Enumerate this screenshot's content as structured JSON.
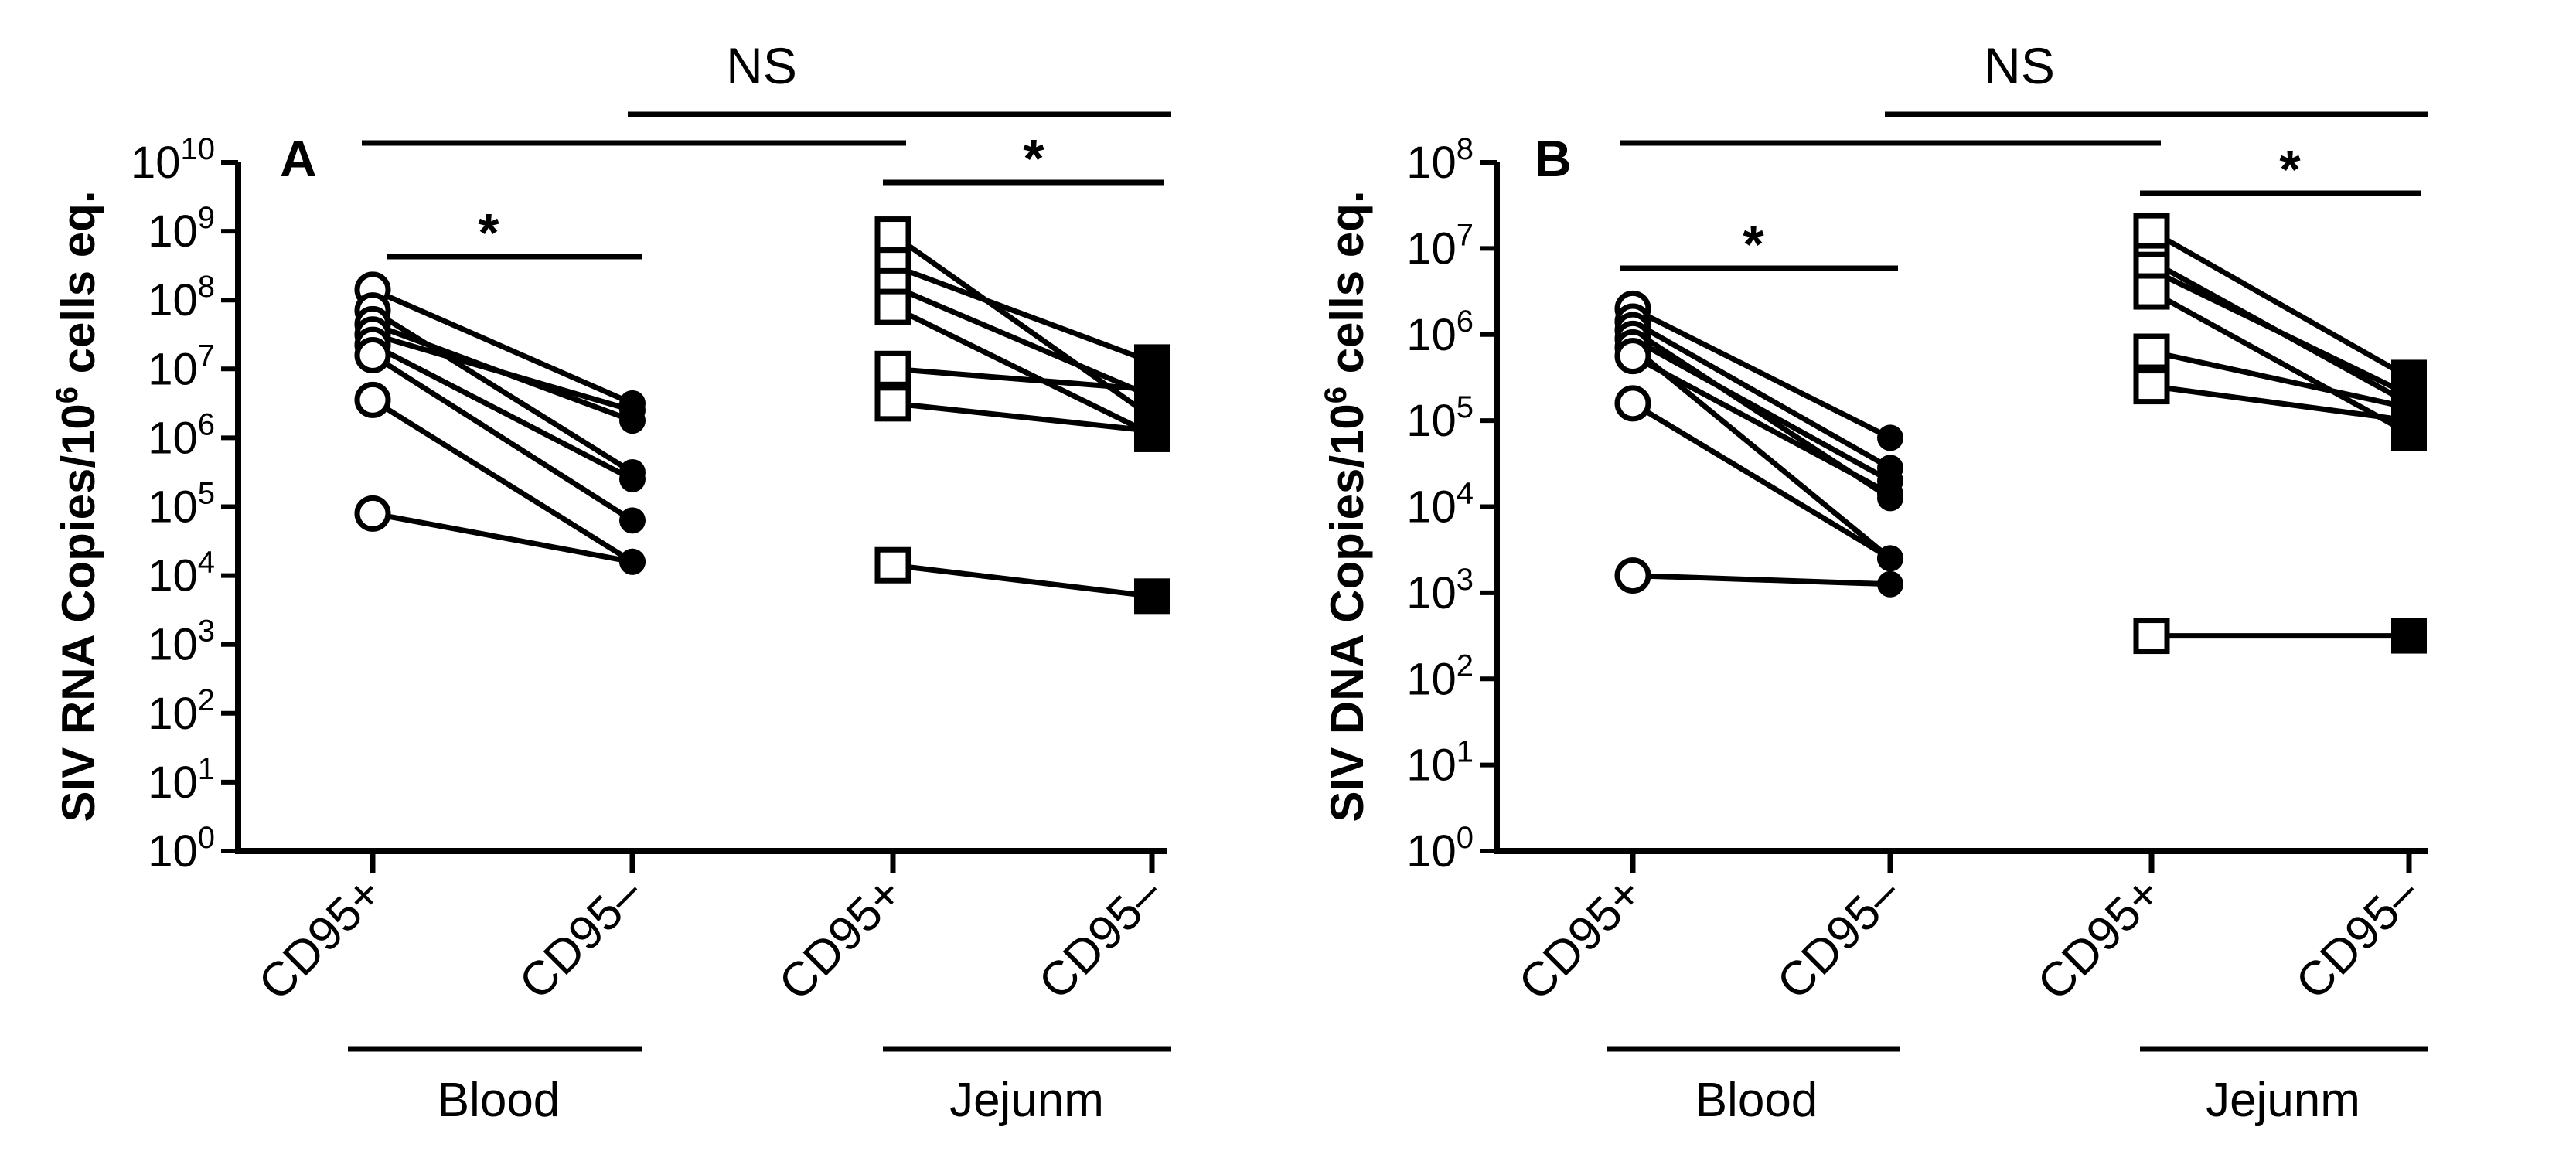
{
  "chart_data": [
    {
      "panel_label": "A",
      "type": "scatter",
      "ylabel_main": "SIV RNA Copies/10",
      "ylabel_exp": "6",
      "ylabel_end": " cells eq.",
      "yscale": "log10",
      "ylim_exp": [
        0,
        10
      ],
      "tick_labels": [
        {
          "base": "10",
          "exp": "0"
        },
        {
          "base": "10",
          "exp": "1"
        },
        {
          "base": "10",
          "exp": "2"
        },
        {
          "base": "10",
          "exp": "3"
        },
        {
          "base": "10",
          "exp": "4"
        },
        {
          "base": "10",
          "exp": "5"
        },
        {
          "base": "10",
          "exp": "6"
        },
        {
          "base": "10",
          "exp": "7"
        },
        {
          "base": "10",
          "exp": "8"
        },
        {
          "base": "10",
          "exp": "9"
        },
        {
          "base": "10",
          "exp": "10"
        }
      ],
      "categories": [
        "CD95+",
        "CD95–",
        "CD95+",
        "CD95–"
      ],
      "groups": [
        {
          "label": "Blood"
        },
        {
          "label": "Jejunm"
        }
      ],
      "significance": [
        {
          "label": "*",
          "comparison": "Blood CD95+ vs Blood CD95–"
        },
        {
          "label": "*",
          "comparison": "Jejunm CD95+ vs Jejunm CD95–"
        },
        {
          "label": "NS",
          "comparison": "Blood vs Jejunm"
        }
      ],
      "blood_pairs_log10": [
        [
          8.15,
          6.5
        ],
        [
          7.85,
          5.5
        ],
        [
          7.65,
          6.25
        ],
        [
          7.5,
          6.4
        ],
        [
          7.35,
          5.4
        ],
        [
          7.2,
          4.8
        ],
        [
          6.55,
          4.2
        ],
        [
          4.9,
          4.2
        ]
      ],
      "jejunum_pairs_log10": [
        [
          8.95,
          6.3
        ],
        [
          8.5,
          7.1
        ],
        [
          8.2,
          6.6
        ],
        [
          7.9,
          6.05
        ],
        [
          7.0,
          6.7
        ],
        [
          6.5,
          6.1
        ],
        [
          4.15,
          3.7
        ]
      ]
    },
    {
      "panel_label": "B",
      "type": "scatter",
      "ylabel_main": "SIV DNA Copies/10",
      "ylabel_exp": "6",
      "ylabel_end": " cells eq.",
      "yscale": "log10",
      "ylim_exp": [
        0,
        8
      ],
      "tick_labels": [
        {
          "base": "10",
          "exp": "0"
        },
        {
          "base": "10",
          "exp": "1"
        },
        {
          "base": "10",
          "exp": "2"
        },
        {
          "base": "10",
          "exp": "3"
        },
        {
          "base": "10",
          "exp": "4"
        },
        {
          "base": "10",
          "exp": "5"
        },
        {
          "base": "10",
          "exp": "6"
        },
        {
          "base": "10",
          "exp": "7"
        },
        {
          "base": "10",
          "exp": "8"
        }
      ],
      "categories": [
        "CD95+",
        "CD95–",
        "CD95+",
        "CD95–"
      ],
      "groups": [
        {
          "label": "Blood"
        },
        {
          "label": "Jejunm"
        }
      ],
      "significance": [
        {
          "label": "*",
          "comparison": "Blood CD95+ vs Blood CD95–"
        },
        {
          "label": "*",
          "comparison": "Jejunm CD95+ vs Jejunm CD95–"
        },
        {
          "label": "NS",
          "comparison": "Blood vs Jejunm"
        }
      ],
      "blood_pairs_log10": [
        [
          6.3,
          4.8
        ],
        [
          6.15,
          4.45
        ],
        [
          6.05,
          4.1
        ],
        [
          5.95,
          4.3
        ],
        [
          5.85,
          3.4
        ],
        [
          5.75,
          4.15
        ],
        [
          5.2,
          3.4
        ],
        [
          3.2,
          3.1
        ]
      ],
      "jejunum_pairs_log10": [
        [
          7.2,
          5.5
        ],
        [
          6.85,
          5.2
        ],
        [
          6.75,
          5.3
        ],
        [
          6.5,
          4.85
        ],
        [
          5.8,
          5.15
        ],
        [
          5.4,
          5.0
        ],
        [
          2.5,
          2.5
        ]
      ]
    }
  ]
}
